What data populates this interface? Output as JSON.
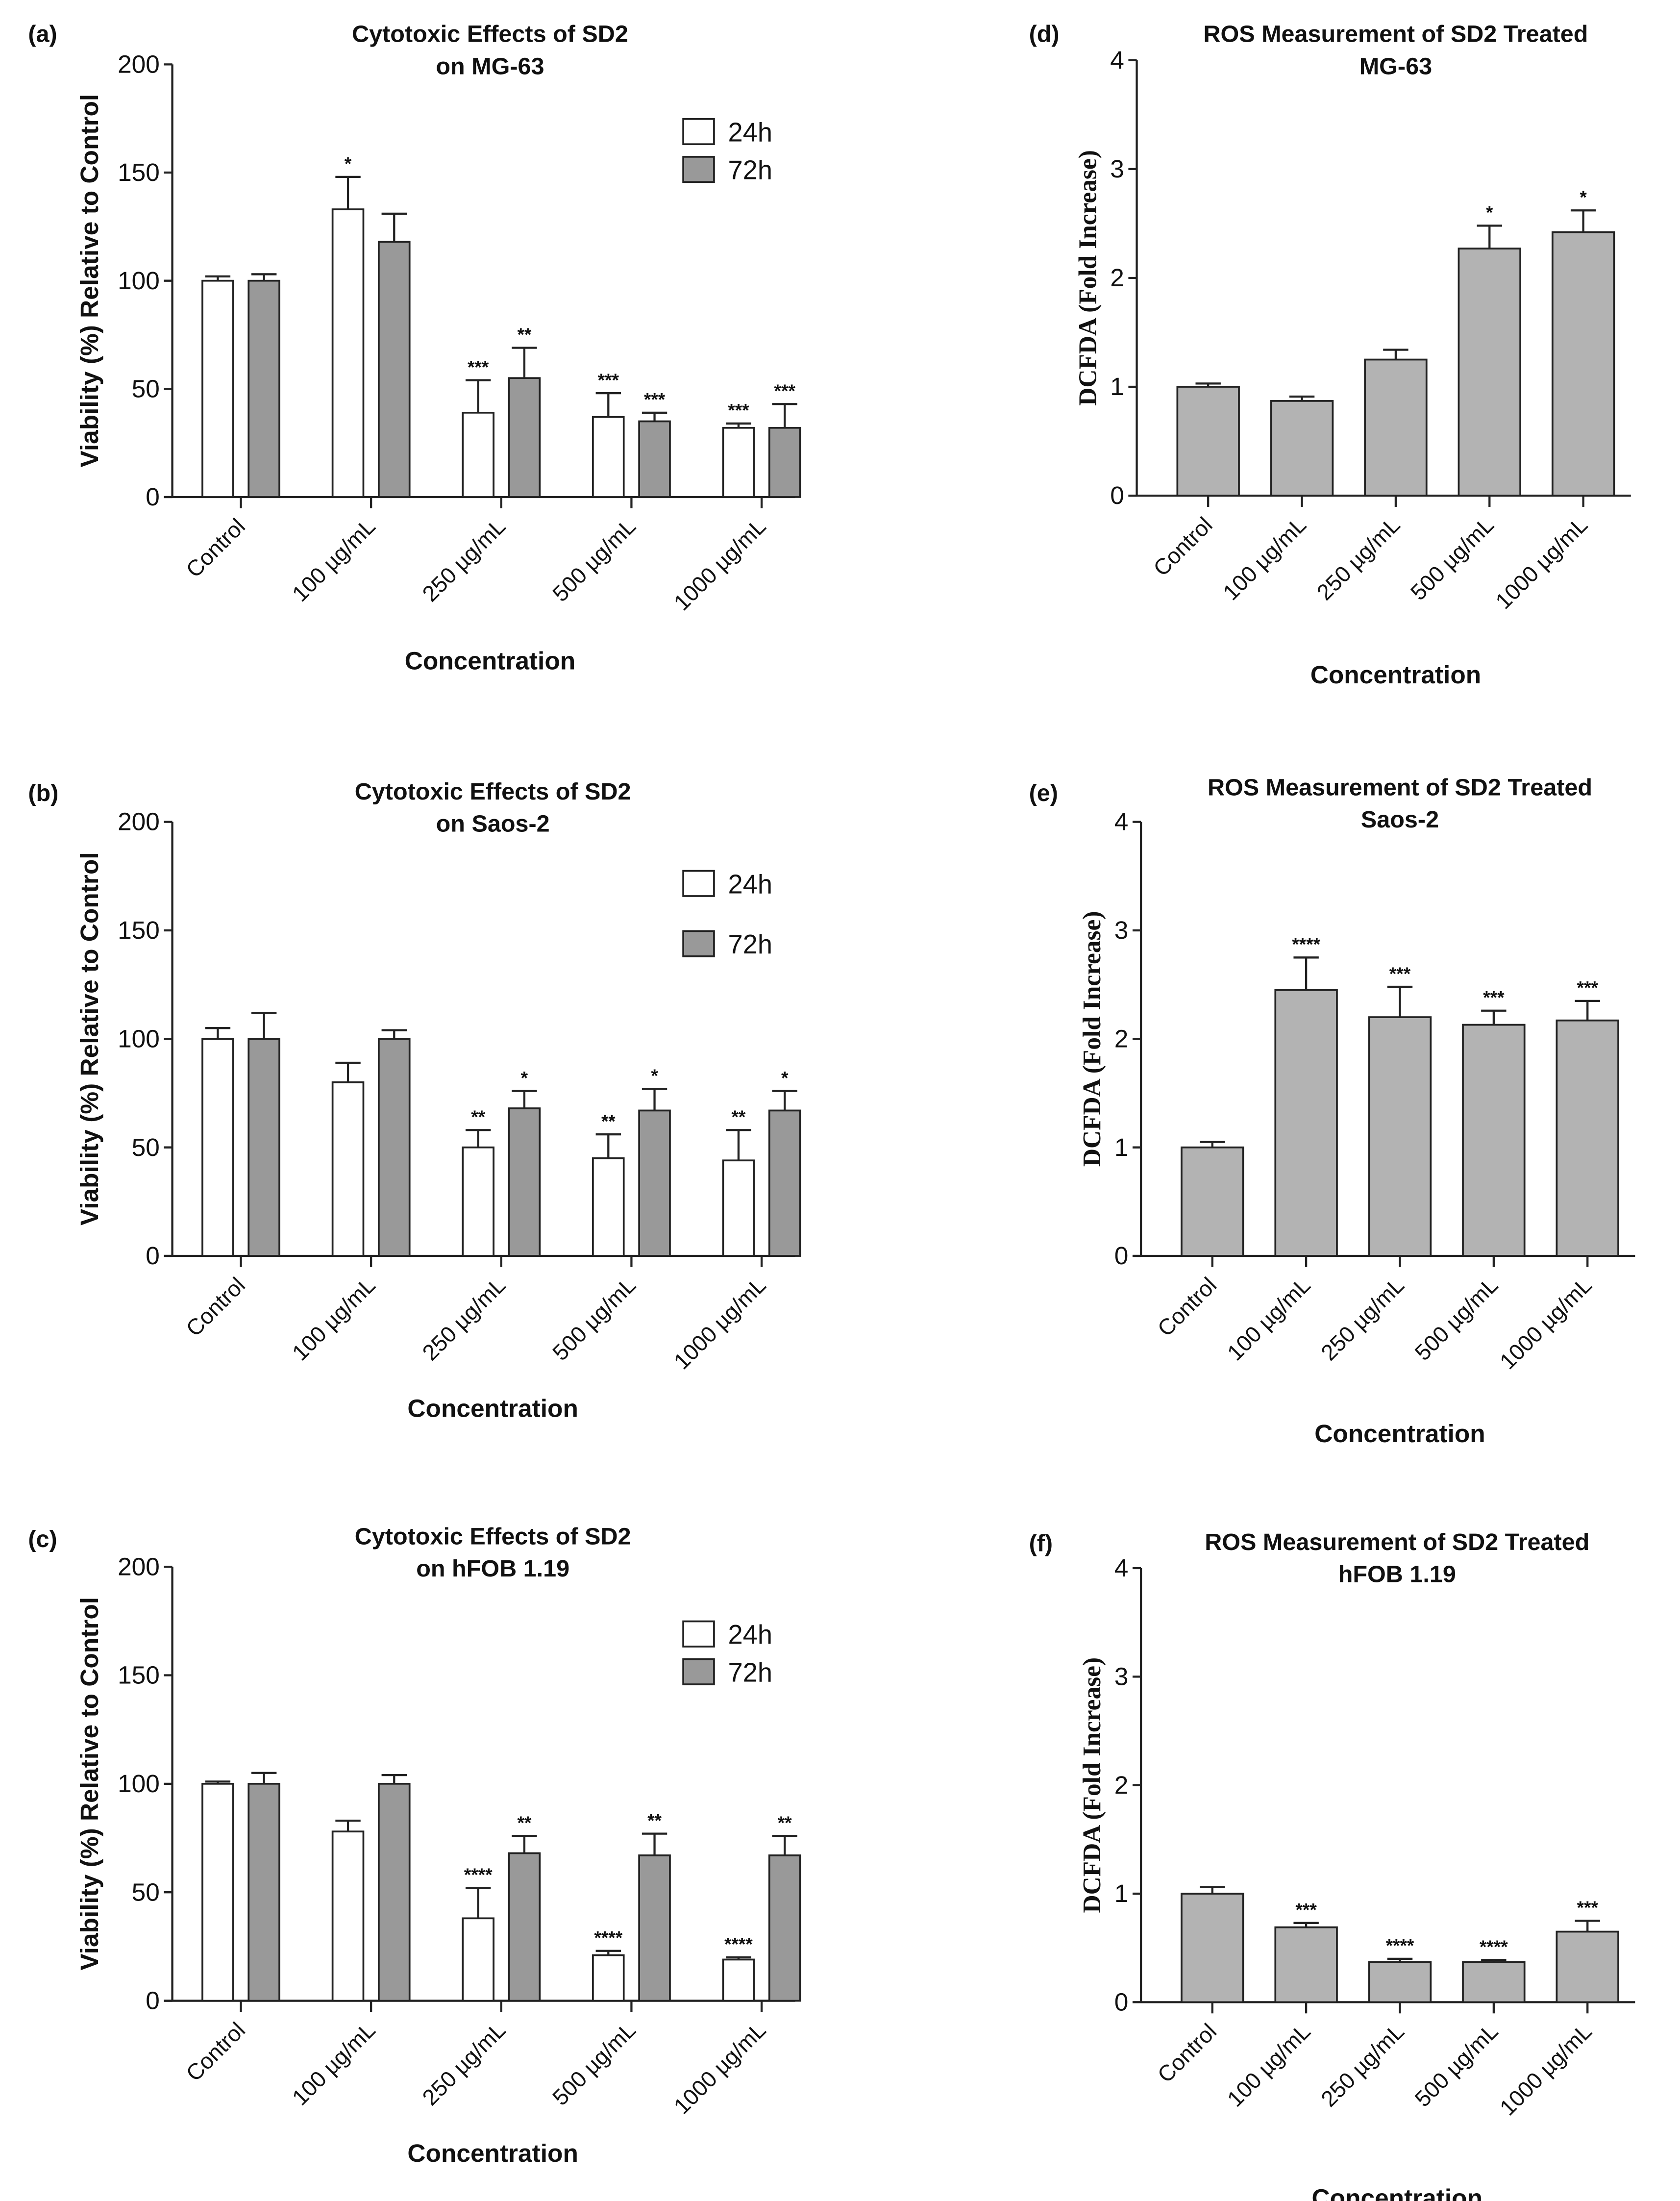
{
  "chart_data": [
    {
      "id": "a",
      "panel_label": "(a)",
      "type": "bar",
      "title": [
        "Cytotoxic Effects of SD2",
        "on MG-63"
      ],
      "xlabel": "Concentration",
      "ylabel": "Viability (%) Relative to Control",
      "ylim": [
        0,
        200
      ],
      "yticks": [
        0,
        50,
        100,
        150,
        200
      ],
      "categories": [
        "Control",
        "100 µg/mL",
        "250 µg/mL",
        "500 µg/mL",
        "1000 µg/mL"
      ],
      "legend_position": "top-right",
      "series": [
        {
          "name": "24h",
          "color": "#ffffff",
          "values": [
            100,
            133,
            39,
            37,
            32
          ],
          "errors": [
            2,
            15,
            15,
            11,
            2
          ],
          "significance": [
            "",
            "*",
            "***",
            "***",
            "***"
          ]
        },
        {
          "name": "72h",
          "color": "#999999",
          "values": [
            100,
            118,
            55,
            35,
            32
          ],
          "errors": [
            3,
            13,
            14,
            4,
            11
          ],
          "significance": [
            "",
            "",
            "**",
            "***",
            "***"
          ]
        }
      ]
    },
    {
      "id": "b",
      "panel_label": "(b)",
      "type": "bar",
      "title": [
        "Cytotoxic Effects of SD2",
        "on Saos-2"
      ],
      "xlabel": "Concentration",
      "ylabel": "Viability (%) Relative to Control",
      "ylim": [
        0,
        200
      ],
      "yticks": [
        0,
        50,
        100,
        150,
        200
      ],
      "categories": [
        "Control",
        "100 µg/mL",
        "250 µg/mL",
        "500 µg/mL",
        "1000 µg/mL"
      ],
      "legend_position": "top-right",
      "series": [
        {
          "name": "24h",
          "color": "#ffffff",
          "values": [
            100,
            80,
            50,
            45,
            44
          ],
          "errors": [
            5,
            9,
            8,
            11,
            14
          ],
          "significance": [
            "",
            "",
            "**",
            "**",
            "**"
          ]
        },
        {
          "name": "72h",
          "color": "#999999",
          "values": [
            100,
            100,
            68,
            67,
            67
          ],
          "errors": [
            12,
            4,
            8,
            10,
            9
          ],
          "significance": [
            "",
            "",
            "*",
            "*",
            "*"
          ]
        }
      ]
    },
    {
      "id": "c",
      "panel_label": "(c)",
      "type": "bar",
      "title": [
        "Cytotoxic Effects of SD2",
        "on hFOB 1.19"
      ],
      "xlabel": "Concentration",
      "ylabel": "Viability (%) Relative to Control",
      "ylim": [
        0,
        200
      ],
      "yticks": [
        0,
        50,
        100,
        150,
        200
      ],
      "categories": [
        "Control",
        "100 µg/mL",
        "250 µg/mL",
        "500 µg/mL",
        "1000 µg/mL"
      ],
      "legend_position": "top-right",
      "series": [
        {
          "name": "24h",
          "color": "#ffffff",
          "values": [
            100,
            78,
            38,
            21,
            19
          ],
          "errors": [
            1,
            5,
            14,
            2,
            1
          ],
          "significance": [
            "",
            "",
            "****",
            "****",
            "****"
          ]
        },
        {
          "name": "72h",
          "color": "#999999",
          "values": [
            100,
            100,
            68,
            67,
            67
          ],
          "errors": [
            5,
            4,
            8,
            10,
            9
          ],
          "significance": [
            "",
            "",
            "**",
            "**",
            "**"
          ]
        }
      ]
    },
    {
      "id": "d",
      "panel_label": "(d)",
      "type": "bar",
      "title": [
        "ROS Measurement of SD2 Treated",
        "MG-63"
      ],
      "xlabel": "Concentration",
      "ylabel": "DCFDA (Fold Increase)",
      "ylim": [
        0,
        4
      ],
      "yticks": [
        0,
        1,
        2,
        3,
        4
      ],
      "categories": [
        "Control",
        "100 µg/mL",
        "250 µg/mL",
        "500 µg/mL",
        "1000 µg/mL"
      ],
      "series": [
        {
          "name": "DCFDA",
          "color": "#b3b3b3",
          "values": [
            1.0,
            0.87,
            1.25,
            2.27,
            2.42
          ],
          "errors": [
            0.03,
            0.04,
            0.09,
            0.21,
            0.2
          ],
          "significance": [
            "",
            "",
            "",
            "*",
            "*"
          ]
        }
      ]
    },
    {
      "id": "e",
      "panel_label": "(e)",
      "type": "bar",
      "title": [
        "ROS Measurement of SD2 Treated",
        "Saos-2"
      ],
      "xlabel": "Concentration",
      "ylabel": "DCFDA (Fold Increase)",
      "ylim": [
        0,
        4
      ],
      "yticks": [
        0,
        1,
        2,
        3,
        4
      ],
      "categories": [
        "Control",
        "100 µg/mL",
        "250 µg/mL",
        "500 µg/mL",
        "1000 µg/mL"
      ],
      "series": [
        {
          "name": "DCFDA",
          "color": "#b3b3b3",
          "values": [
            1.0,
            2.45,
            2.2,
            2.13,
            2.17
          ],
          "errors": [
            0.05,
            0.3,
            0.28,
            0.13,
            0.18
          ],
          "significance": [
            "",
            "****",
            "***",
            "***",
            "***"
          ]
        }
      ]
    },
    {
      "id": "f",
      "panel_label": "(f)",
      "type": "bar",
      "title": [
        "ROS Measurement of SD2 Treated",
        "hFOB 1.19"
      ],
      "xlabel": "Concentration",
      "ylabel": "DCFDA (Fold Increase)",
      "ylim": [
        0,
        4
      ],
      "yticks": [
        0,
        1,
        2,
        3,
        4
      ],
      "categories": [
        "Control",
        "100 µg/mL",
        "250 µg/mL",
        "500 µg/mL",
        "1000 µg/mL"
      ],
      "series": [
        {
          "name": "DCFDA",
          "color": "#b3b3b3",
          "values": [
            1.0,
            0.69,
            0.37,
            0.37,
            0.65
          ],
          "errors": [
            0.06,
            0.04,
            0.03,
            0.02,
            0.1
          ],
          "significance": [
            "",
            "***",
            "****",
            "****",
            "***"
          ]
        }
      ]
    }
  ]
}
